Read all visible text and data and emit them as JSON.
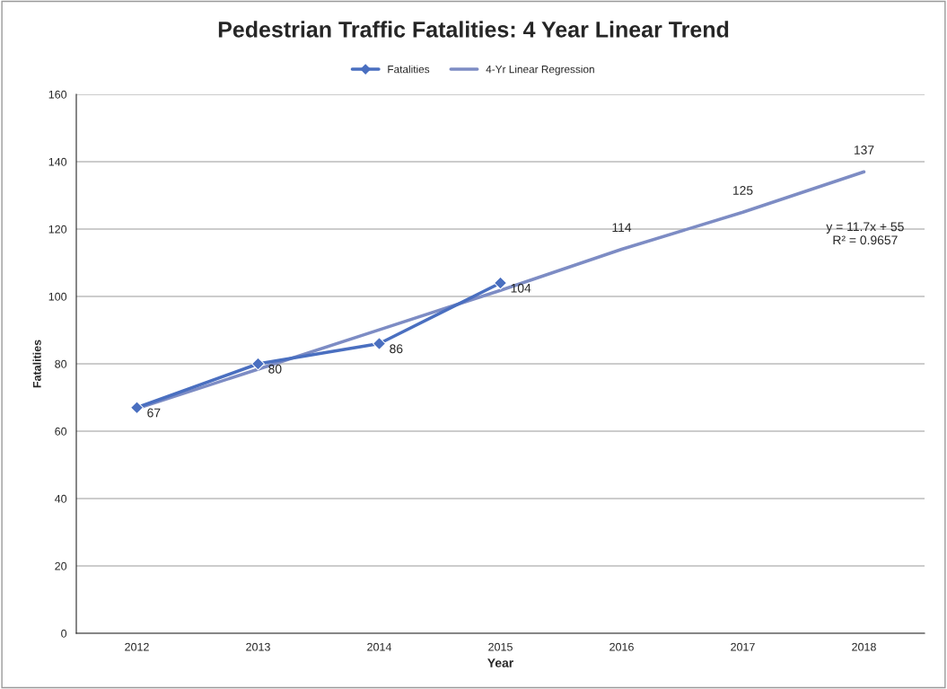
{
  "chart_data": {
    "type": "line",
    "title": "Pedestrian Traffic Fatalities: 4 Year Linear Trend",
    "xlabel": "Year",
    "ylabel": "Fatalities",
    "categories": [
      "2012",
      "2013",
      "2014",
      "2015",
      "2016",
      "2017",
      "2018"
    ],
    "series": [
      {
        "name": "Fatalities",
        "color": "#4a6fc0",
        "marker": "diamond",
        "values": [
          67,
          80,
          86,
          104,
          null,
          null,
          null
        ],
        "value_labels": [
          "67",
          "80",
          "86",
          "104",
          null,
          null,
          null
        ]
      },
      {
        "name": "4-Yr Linear Regression",
        "color": "#7d8cc4",
        "marker": "none",
        "values": [
          66.7,
          78.4,
          90.1,
          101.8,
          114,
          125,
          137
        ],
        "value_labels": [
          null,
          null,
          null,
          null,
          "114",
          "125",
          "137"
        ]
      }
    ],
    "ylim": [
      0,
      160
    ],
    "yticks": [
      0,
      20,
      40,
      60,
      80,
      100,
      120,
      140,
      160
    ],
    "grid": "y",
    "legend": "top",
    "annotations": [
      "y = 11.7x + 55\nR² = 0.9657"
    ]
  }
}
